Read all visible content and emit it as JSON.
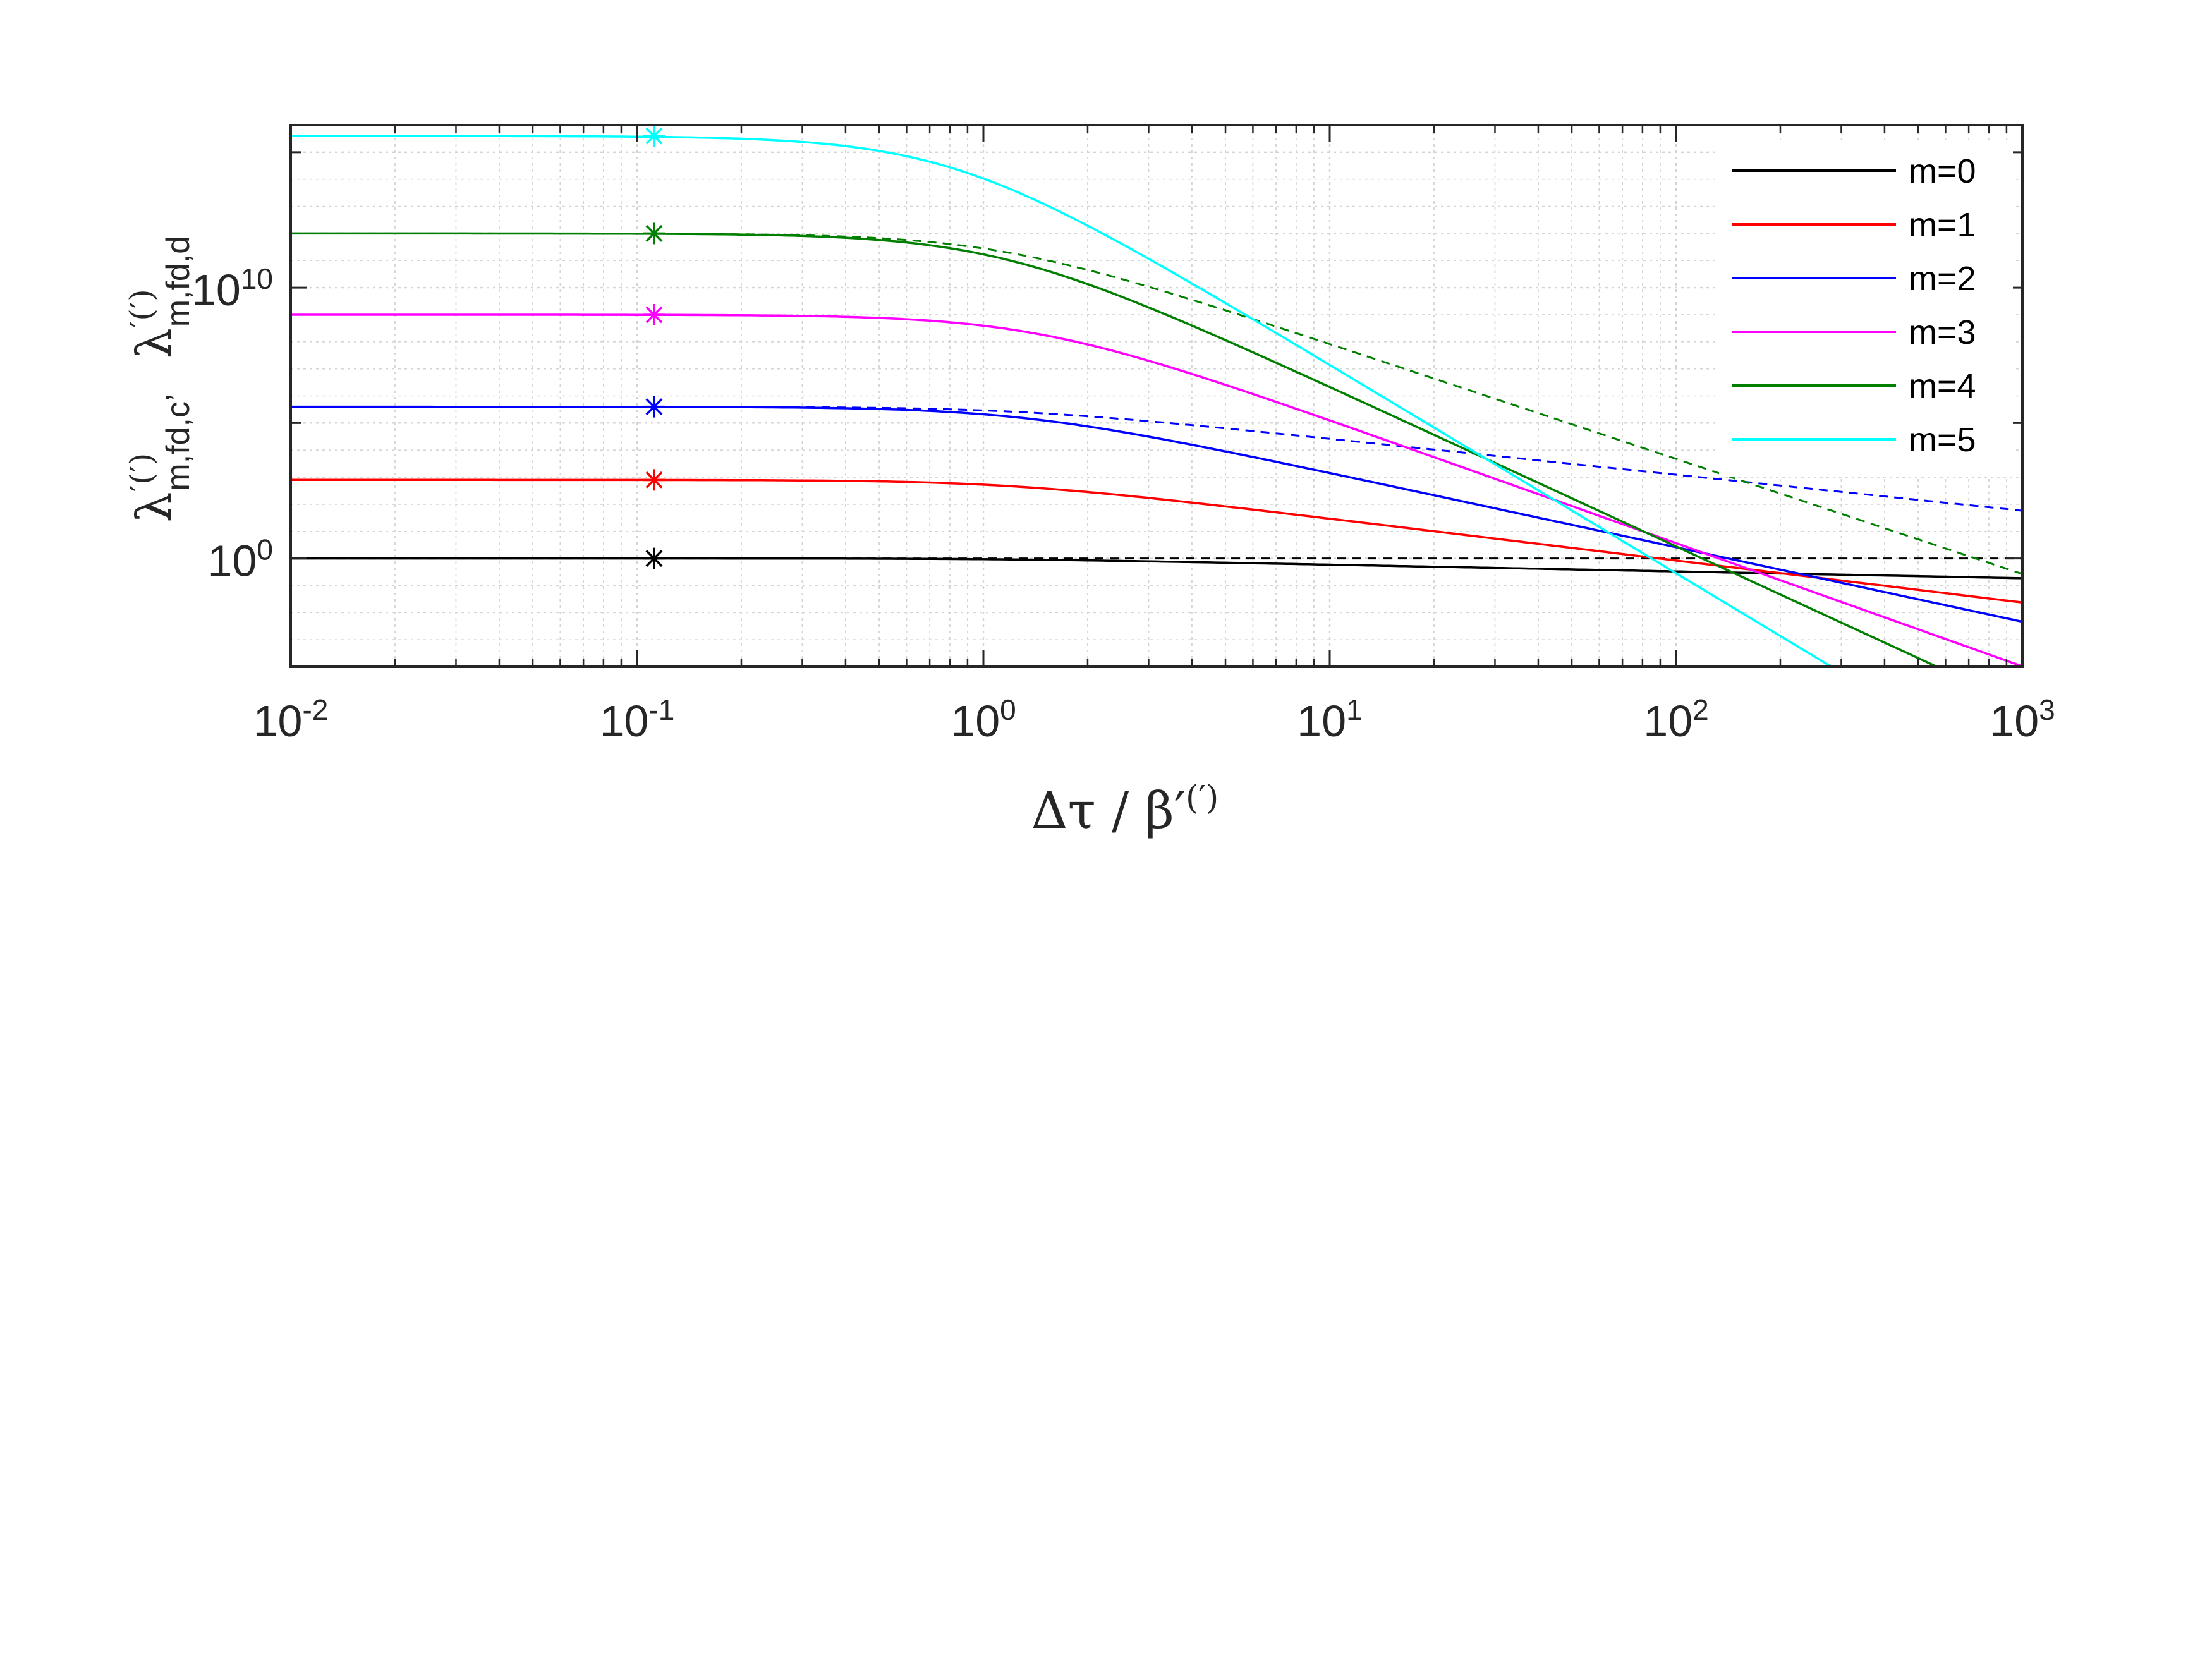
{
  "chart_data": {
    "type": "line",
    "title": "",
    "xlabel": "Δτ / β′(′)",
    "ylabel_upper": {
      "main": "λ",
      "sup": "′(′)",
      "sub": "m,fd,d"
    },
    "ylabel_lower": {
      "main": "λ",
      "sup": "′(′)",
      "sub": "m,fd,c’"
    },
    "x_scale": "log",
    "y_scale": "log",
    "xlim": [
      0.01,
      1000
    ],
    "ylim_log10": [
      -4,
      16
    ],
    "x_ticks": [
      {
        "base": "10",
        "exp": "-2",
        "value": 0.01
      },
      {
        "base": "10",
        "exp": "-1",
        "value": 0.1
      },
      {
        "base": "10",
        "exp": "0",
        "value": 1
      },
      {
        "base": "10",
        "exp": "1",
        "value": 10
      },
      {
        "base": "10",
        "exp": "2",
        "value": 100
      },
      {
        "base": "10",
        "exp": "3",
        "value": 1000
      }
    ],
    "y_ticks": [
      {
        "base": "10",
        "exp": "0",
        "log10": 0
      },
      {
        "base": "10",
        "exp": "10",
        "log10": 10
      }
    ],
    "grid": true,
    "legend_position": "top-right",
    "marker_x": 0.112,
    "series": [
      {
        "name": "m=0",
        "color": "#000000",
        "plateau_log10": 0.0,
        "solid_drop_log10_per_decade": 0.25,
        "dashed_drop_log10_per_decade": 0.0,
        "x_break": 1.2,
        "marker_log10": 0.0
      },
      {
        "name": "m=1",
        "color": "#ff0000",
        "plateau_log10": 2.9,
        "solid_drop_log10_per_decade": 1.55,
        "dashed_drop_log10_per_decade": 1.55,
        "x_break": 1.2,
        "marker_log10": 2.9
      },
      {
        "name": "m=2",
        "color": "#0000ff",
        "plateau_log10": 5.6,
        "solid_drop_log10_per_decade": 2.75,
        "dashed_drop_log10_per_decade": 1.33,
        "x_break": 1.3,
        "marker_log10": 5.6
      },
      {
        "name": "m=3",
        "color": "#ff00ff",
        "plateau_log10": 9.0,
        "solid_drop_log10_per_decade": 4.55,
        "dashed_drop_log10_per_decade": 4.55,
        "x_break": 1.4,
        "marker_log10": 9.0
      },
      {
        "name": "m=4",
        "color": "#007f00",
        "plateau_log10": 12.0,
        "solid_drop_log10_per_decade": 5.9,
        "dashed_drop_log10_per_decade": 4.25,
        "x_break": 1.1,
        "marker_log10": 12.0
      },
      {
        "name": "m=5",
        "color": "#00ffff",
        "plateau_log10": 15.6,
        "solid_drop_log10_per_decade": 7.7,
        "dashed_drop_log10_per_decade": 7.7,
        "x_break": 0.8,
        "marker_log10": 15.6
      }
    ]
  }
}
